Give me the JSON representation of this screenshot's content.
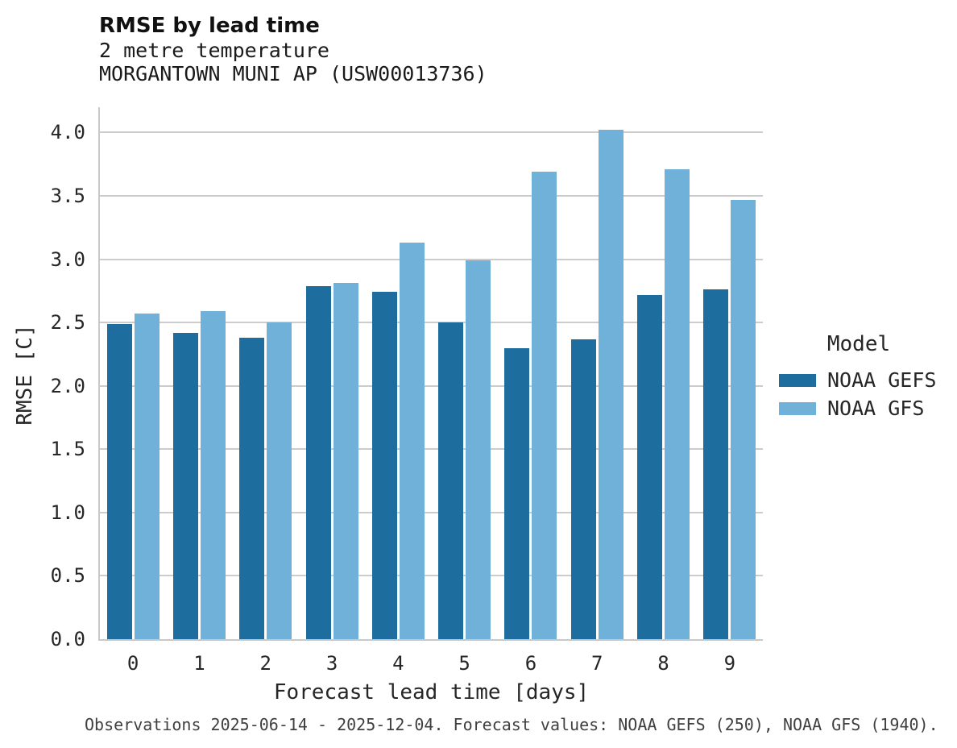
{
  "header": {
    "title": "RMSE by lead time",
    "subtitle_line1": "2 metre temperature",
    "subtitle_line2": "MORGANTOWN MUNI AP (USW00013736)"
  },
  "legend": {
    "title": "Model",
    "items": [
      {
        "label": "NOAA GEFS",
        "color": "#1d6e9e"
      },
      {
        "label": "NOAA GFS",
        "color": "#6fb1d9"
      }
    ]
  },
  "footer": {
    "caption": "Observations 2025-06-14 - 2025-12-04. Forecast values: NOAA GEFS (250), NOAA GFS (1940)."
  },
  "colors": {
    "series_dark": "#1d6e9e",
    "series_light": "#6fb1d9",
    "grid": "#cccccc",
    "spine": "#c9c9c9",
    "tick_text": "#262626",
    "footer_text": "#3f3f3f",
    "background": "#ffffff"
  },
  "chart_data": {
    "type": "bar",
    "title": "RMSE by lead time",
    "subtitle": "2 metre temperature — MORGANTOWN MUNI AP (USW00013736)",
    "xlabel": "Forecast lead time [days]",
    "ylabel": "RMSE [C]",
    "categories": [
      "0",
      "1",
      "2",
      "3",
      "4",
      "5",
      "6",
      "7",
      "8",
      "9"
    ],
    "series": [
      {
        "name": "NOAA GEFS",
        "color": "#1d6e9e",
        "values": [
          2.49,
          2.42,
          2.38,
          2.79,
          2.74,
          2.5,
          2.3,
          2.37,
          2.72,
          2.76
        ]
      },
      {
        "name": "NOAA GFS",
        "color": "#6fb1d9",
        "values": [
          2.57,
          2.59,
          2.5,
          2.81,
          3.13,
          2.99,
          3.69,
          4.02,
          3.71,
          3.47
        ]
      }
    ],
    "ylim": [
      0,
      4.2
    ],
    "yticks": [
      0.0,
      0.5,
      1.0,
      1.5,
      2.0,
      2.5,
      3.0,
      3.5,
      4.0
    ],
    "grid": true,
    "legend_title": "Model",
    "legend_position": "right"
  }
}
